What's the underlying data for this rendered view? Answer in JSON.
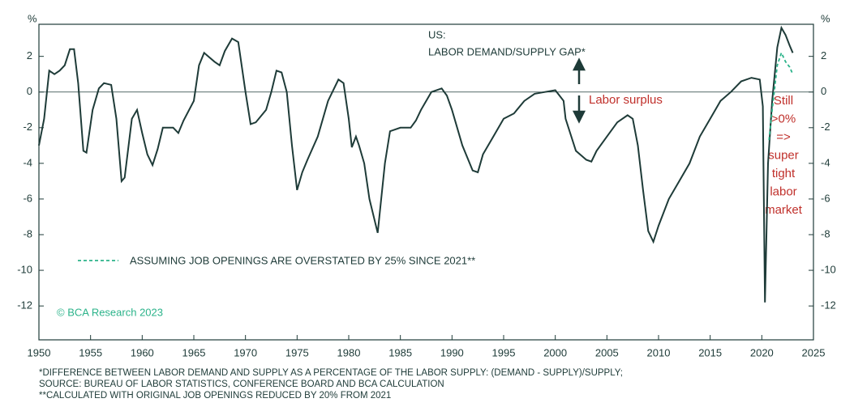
{
  "chart_data": {
    "type": "line",
    "title": "US:",
    "subtitle": "LABOR DEMAND/SUPPLY GAP*",
    "y_unit_left": "%",
    "y_unit_right": "%",
    "annotations": [
      "Labor surplus"
    ],
    "side_note": [
      "Still",
      ">0%",
      "=>",
      "super",
      "tight",
      "labor",
      "market"
    ],
    "watermark": "© BCA Research 2023",
    "footnotes": [
      "*DIFFERENCE BETWEEN LABOR DEMAND AND SUPPLY AS A PERCENTAGE OF THE LABOR SUPPLY: (DEMAND - SUPPLY)/SUPPLY;",
      "SOURCE: BUREAU OF LABOR STATISTICS, CONFERENCE BOARD AND BCA CALCULATION",
      "**CALCULATED WITH ORIGINAL JOB OPENINGS REDUCED BY 20% FROM 2021"
    ],
    "xlim": [
      1950,
      2025
    ],
    "xticks": [
      1950,
      1955,
      1960,
      1965,
      1970,
      1975,
      1980,
      1985,
      1990,
      1995,
      2000,
      2005,
      2010,
      2015,
      2020,
      2025
    ],
    "ylim": [
      -13.9,
      3.8
    ],
    "yticks": [
      2,
      0,
      -2,
      -4,
      -6,
      -8,
      -10,
      -12
    ],
    "zero_line": true,
    "series": [
      {
        "name": null,
        "color": "#1e3b38",
        "dashed": false,
        "x": [
          1950,
          1950.5,
          1951,
          1951.5,
          1952,
          1952.5,
          1953,
          1953.4,
          1953.8,
          1954.3,
          1954.6,
          1955.2,
          1955.8,
          1956.3,
          1957,
          1957.5,
          1958,
          1958.3,
          1959,
          1959.5,
          1960,
          1960.5,
          1961,
          1961.5,
          1962,
          1963,
          1963.5,
          1964,
          1965,
          1965.5,
          1966,
          1967,
          1967.5,
          1968,
          1968.7,
          1969.3,
          1970,
          1970.5,
          1971,
          1972,
          1972.5,
          1973,
          1973.5,
          1974,
          1974.5,
          1975,
          1975.5,
          1976,
          1977,
          1978,
          1979,
          1979.5,
          1980,
          1980.3,
          1980.7,
          1981,
          1981.5,
          1982,
          1982.8,
          1983,
          1983.5,
          1984,
          1985,
          1986,
          1986.5,
          1987,
          1988,
          1989,
          1989.5,
          1990,
          1991,
          1992,
          1992.5,
          1993,
          1994,
          1995,
          1996,
          1997,
          1998,
          1999,
          2000,
          2000.8,
          2001,
          2002,
          2003,
          2003.5,
          2004,
          2005,
          2006,
          2007,
          2007.5,
          2008,
          2008.5,
          2009,
          2009.5,
          2010,
          2011,
          2012,
          2013,
          2014,
          2015,
          2016,
          2017,
          2018,
          2019,
          2019.8,
          2020.1,
          2020.3,
          2020.6,
          2021,
          2021.5,
          2021.9,
          2022.3,
          2022.7,
          2023
        ],
        "values": [
          -3,
          -1.5,
          1.2,
          1.0,
          1.2,
          1.5,
          2.4,
          2.4,
          0.5,
          -3.3,
          -3.4,
          -1,
          0.2,
          0.5,
          0.4,
          -1.5,
          -5,
          -4.8,
          -1.5,
          -1,
          -2.3,
          -3.5,
          -4.1,
          -3.2,
          -2,
          -2,
          -2.3,
          -1.6,
          -0.5,
          1.5,
          2.2,
          1.7,
          1.5,
          2.3,
          3.0,
          2.8,
          0,
          -1.8,
          -1.7,
          -1.0,
          0,
          1.2,
          1.1,
          0,
          -3,
          -5.5,
          -4.5,
          -3.8,
          -2.5,
          -0.5,
          0.7,
          0.5,
          -1.5,
          -3.1,
          -2.5,
          -3.0,
          -4,
          -6,
          -7.9,
          -6.8,
          -4,
          -2.2,
          -2,
          -2,
          -1.6,
          -1.0,
          0,
          0.2,
          -0.2,
          -1,
          -3,
          -4.4,
          -4.5,
          -3.5,
          -2.5,
          -1.5,
          -1.2,
          -0.5,
          -0.1,
          0,
          0.1,
          -0.5,
          -1.5,
          -3.3,
          -3.8,
          -3.9,
          -3.3,
          -2.5,
          -1.7,
          -1.3,
          -1.5,
          -3,
          -5.5,
          -7.8,
          -8.4,
          -7.5,
          -6,
          -5,
          -4,
          -2.5,
          -1.5,
          -0.5,
          0,
          0.6,
          0.8,
          0.7,
          -0.8,
          -11.8,
          -4,
          -0.5,
          2.5,
          3.6,
          3.2,
          2.6,
          2.2
        ]
      },
      {
        "name": "ASSUMING JOB OPENINGS ARE OVERSTATED BY 25% SINCE 2021**",
        "color": "#2bb38a",
        "dashed": true,
        "x": [
          2020.7,
          2021,
          2021.5,
          2021.9,
          2022.3,
          2022.7,
          2023
        ],
        "values": [
          -2.7,
          -1,
          1.5,
          2.2,
          1.7,
          1.4,
          1.0
        ]
      }
    ]
  }
}
